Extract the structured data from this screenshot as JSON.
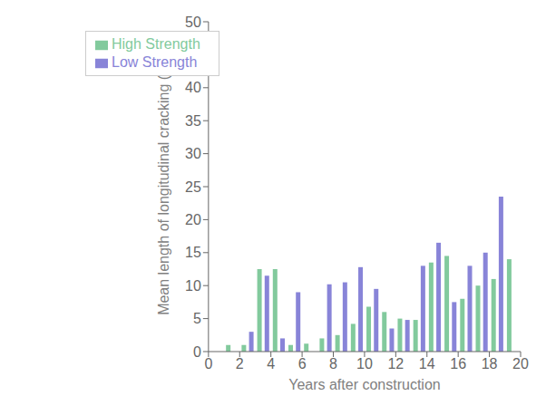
{
  "chart_data": {
    "type": "bar",
    "x": [
      1,
      2,
      3,
      4,
      5,
      6,
      7,
      8,
      9,
      10,
      11,
      12,
      13,
      14,
      15,
      16,
      17,
      18,
      19
    ],
    "series": [
      {
        "name": "Low Strength",
        "color": "#8884d8",
        "values": [
          0,
          0,
          3.0,
          11.5,
          2.0,
          9.0,
          0,
          10.2,
          10.5,
          12.8,
          9.5,
          3.5,
          4.8,
          13.0,
          16.5,
          7.5,
          13.0,
          15.0,
          23.5
        ]
      },
      {
        "name": "High Strength",
        "color": "#82ca9d",
        "values": [
          1.0,
          1.0,
          12.5,
          12.5,
          1.0,
          1.2,
          2.0,
          2.5,
          4.2,
          6.8,
          6.0,
          5.0,
          4.8,
          13.5,
          14.5,
          8.0,
          10.0,
          11.0,
          14.0
        ]
      }
    ],
    "xlabel": "Years after construction",
    "ylabel": "Mean length of longitudinal cracking (m)",
    "xlim": [
      0,
      20
    ],
    "xticks": [
      0,
      2,
      4,
      6,
      8,
      10,
      12,
      14,
      16,
      18,
      20
    ],
    "ylim": [
      0,
      50
    ],
    "yticks": [
      0,
      5,
      10,
      15,
      20,
      25,
      30,
      35,
      40,
      45,
      50
    ],
    "grid": false,
    "legend": "upper left"
  }
}
